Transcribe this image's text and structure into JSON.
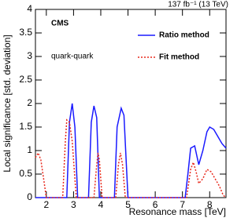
{
  "chart_data": {
    "type": "line",
    "top_label": "137 fb⁻¹ (13 TeV)",
    "experiment": "CMS",
    "annotation": "quark-quark",
    "x_label": "Resonance mass [TeV]",
    "y_label": "Local significance [std. deviation]",
    "xlim": [
      1.6,
      8.6
    ],
    "xticks": [
      2,
      3,
      4,
      5,
      6,
      7,
      8
    ],
    "ylim": [
      0,
      4
    ],
    "yticks": [
      0,
      0.5,
      1,
      1.5,
      2,
      2.5,
      3,
      3.5,
      4
    ],
    "series": [
      {
        "name": "Ratio method",
        "color": "#1a1aff",
        "dash": "solid",
        "x": [
          1.6,
          2.75,
          2.85,
          2.95,
          3.05,
          3.15,
          3.55,
          3.65,
          3.75,
          3.85,
          3.95,
          4.5,
          4.6,
          4.75,
          4.85,
          5.0,
          7.1,
          7.2,
          7.3,
          7.45,
          7.6,
          7.75,
          7.9,
          8.0,
          8.15,
          8.3,
          8.45,
          8.6
        ],
        "values": [
          0,
          0,
          1.6,
          2.0,
          1.5,
          0,
          0,
          1.6,
          1.95,
          1.7,
          0,
          0,
          1.5,
          1.9,
          1.75,
          0,
          0,
          0.5,
          1.05,
          1.1,
          0.7,
          1.0,
          1.4,
          1.5,
          1.45,
          1.3,
          1.15,
          1.05
        ]
      },
      {
        "name": "Fit method",
        "color": "#e8291c",
        "dash": "dotted",
        "x": [
          1.6,
          1.7,
          1.8,
          1.9,
          2.0,
          2.6,
          2.7,
          2.75,
          2.85,
          2.95,
          3.05,
          3.1,
          3.75,
          3.85,
          3.9,
          3.95,
          4.05,
          4.55,
          4.65,
          4.72,
          4.8,
          4.9,
          7.15,
          7.3,
          7.4,
          7.5,
          7.6,
          7.75,
          7.9,
          8.05,
          8.2,
          8.35,
          8.5,
          8.6
        ],
        "values": [
          0.85,
          0.95,
          0.8,
          0.4,
          0,
          0,
          1.2,
          1.65,
          1.6,
          1.2,
          0.4,
          0,
          0,
          0.7,
          0.95,
          0.8,
          0,
          0,
          0.7,
          0.95,
          0.7,
          0,
          0,
          0.6,
          0.75,
          0.55,
          0.3,
          0.4,
          0.6,
          0.55,
          0.4,
          0.25,
          0.05,
          0
        ]
      }
    ]
  }
}
